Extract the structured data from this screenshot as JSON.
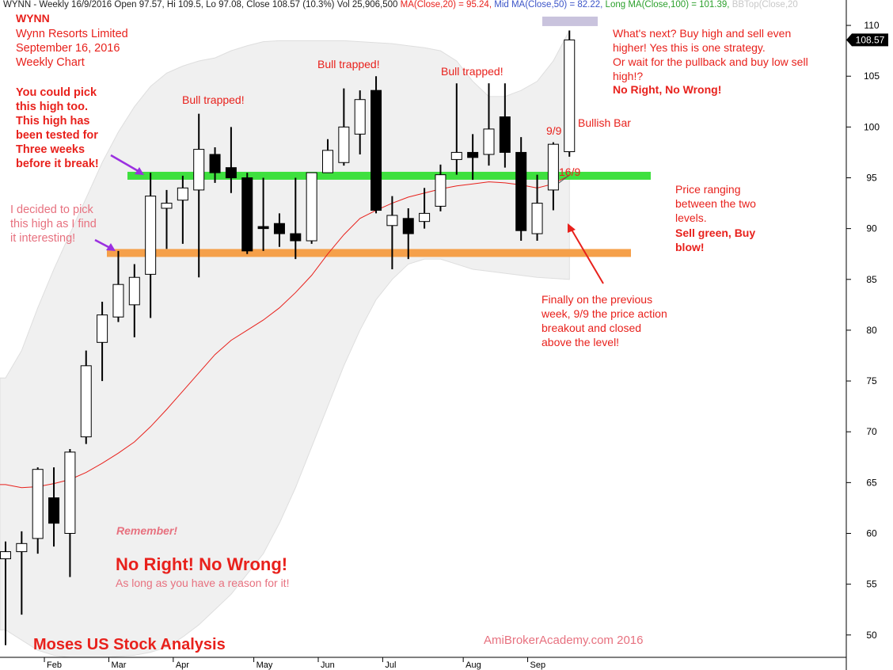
{
  "header": {
    "symbol_line": "WYNN - Weekly 16/9/2016 Open 97.57, Hi 109.5, Lo 97.08, Close 108.57 (10.3%) Vol 25,906,500",
    "ma20": "MA(Close,20) = 95.24,",
    "ma50": "Mid MA(Close,50) = 82.22,",
    "ma100": "Long MA(Close,100) = 101.39,",
    "bbtop": "BBTop(Close,20"
  },
  "title_block": {
    "ticker": "WYNN",
    "company": "Wynn Resorts Limited",
    "date": "September 16, 2016",
    "period": "Weekly Chart"
  },
  "annotations": {
    "pick_high": "You could  pick\nthis high too.\nThis high has\nbeen tested for\nThree weeks\nbefore it break!",
    "decided": "I decided to pick\nthis high as I find\nit interesting!",
    "bull1": "Bull trapped!",
    "bull2": "Bull trapped!",
    "bull3": "Bull trapped!",
    "whats_next": "What's next? Buy high and sell even\nhigher! Yes this is one strategy.\nOr wait for the pullback and buy low sell\nhigh!?",
    "no_right": "No Right, No Wrong!",
    "bullish_bar": "Bullish Bar",
    "label_99": "9/9",
    "label_169": "16/9",
    "ranging": "Price ranging\nbetween the two\nlevels.",
    "sell_green": "Sell green, Buy\nblow!",
    "finally": "Finally on the previous\nweek, 9/9 the price action\nbreakout and closed\nabove the level!",
    "remember": "Remember!",
    "no_right2": "No Right! No Wrong!",
    "as_long": "As long as you have a reason for it!",
    "moses": "Moses US Stock Analysis",
    "amibroker": "AmiBrokerAcademy.com  2016"
  },
  "colors": {
    "green_level": "#3ee03e",
    "orange_level": "#f5a04a",
    "ma_line": "#e8211c",
    "band_fill": "#f0f0f0",
    "highlight": "#c9c3dd"
  },
  "chart_data": {
    "type": "candlestick",
    "ylim": [
      47.8,
      112.5
    ],
    "y_ticks": [
      50,
      55,
      60,
      65,
      70,
      75,
      80,
      85,
      90,
      95,
      100,
      105,
      110
    ],
    "last_price": "108.57",
    "x_months": [
      "Feb",
      "Mar",
      "Apr",
      "May",
      "Jun",
      "Jul",
      "Aug",
      "Sep"
    ],
    "levels": {
      "green": 95.2,
      "orange": 87.6
    },
    "candles": [
      {
        "o": 57.5,
        "h": 59.2,
        "l": 49.0,
        "c": 58.2
      },
      {
        "o": 58.2,
        "h": 60.2,
        "l": 52.0,
        "c": 59.0
      },
      {
        "o": 59.5,
        "h": 66.5,
        "l": 58.0,
        "c": 66.3
      },
      {
        "o": 63.5,
        "h": 66.5,
        "l": 58.7,
        "c": 61.0
      },
      {
        "o": 60.0,
        "h": 68.3,
        "l": 55.7,
        "c": 68.0
      },
      {
        "o": 69.5,
        "h": 78.0,
        "l": 68.8,
        "c": 76.5
      },
      {
        "o": 78.8,
        "h": 82.8,
        "l": 75.0,
        "c": 81.5
      },
      {
        "o": 81.3,
        "h": 87.8,
        "l": 80.8,
        "c": 84.5
      },
      {
        "o": 82.5,
        "h": 86.5,
        "l": 79.3,
        "c": 85.2
      },
      {
        "o": 85.5,
        "h": 95.5,
        "l": 81.2,
        "c": 93.2
      },
      {
        "o": 92.0,
        "h": 93.8,
        "l": 88.0,
        "c": 92.5
      },
      {
        "o": 92.8,
        "h": 95.2,
        "l": 88.5,
        "c": 94.0
      },
      {
        "o": 93.8,
        "h": 101.3,
        "l": 85.2,
        "c": 97.8
      },
      {
        "o": 97.3,
        "h": 98.0,
        "l": 94.5,
        "c": 95.5
      },
      {
        "o": 96.0,
        "h": 100.0,
        "l": 93.5,
        "c": 95.0
      },
      {
        "o": 95.0,
        "h": 95.5,
        "l": 87.5,
        "c": 87.8
      },
      {
        "o": 90.2,
        "h": 95.0,
        "l": 87.8,
        "c": 90.0
      },
      {
        "o": 90.5,
        "h": 91.5,
        "l": 88.2,
        "c": 89.5
      },
      {
        "o": 89.5,
        "h": 95.0,
        "l": 87.0,
        "c": 88.8
      },
      {
        "o": 88.8,
        "h": 95.0,
        "l": 88.5,
        "c": 95.5
      },
      {
        "o": 95.5,
        "h": 98.8,
        "l": 95.5,
        "c": 97.7
      },
      {
        "o": 96.5,
        "h": 103.8,
        "l": 96.2,
        "c": 100.0
      },
      {
        "o": 99.3,
        "h": 103.6,
        "l": 97.3,
        "c": 102.7
      },
      {
        "o": 103.6,
        "h": 105.0,
        "l": 91.5,
        "c": 91.8
      },
      {
        "o": 90.3,
        "h": 93.2,
        "l": 86.0,
        "c": 91.3
      },
      {
        "o": 91.0,
        "h": 92.0,
        "l": 87.0,
        "c": 89.5
      },
      {
        "o": 90.7,
        "h": 94.0,
        "l": 90.0,
        "c": 91.5
      },
      {
        "o": 92.2,
        "h": 96.3,
        "l": 91.7,
        "c": 95.3
      },
      {
        "o": 96.8,
        "h": 104.3,
        "l": 95.3,
        "c": 97.5
      },
      {
        "o": 97.5,
        "h": 99.3,
        "l": 94.8,
        "c": 97.0
      },
      {
        "o": 97.3,
        "h": 104.3,
        "l": 96.2,
        "c": 99.8
      },
      {
        "o": 101.0,
        "h": 104.3,
        "l": 96.0,
        "c": 97.5
      },
      {
        "o": 97.5,
        "h": 99.0,
        "l": 88.8,
        "c": 89.8
      },
      {
        "o": 89.5,
        "h": 95.3,
        "l": 88.8,
        "c": 92.5
      },
      {
        "o": 93.8,
        "h": 98.5,
        "l": 91.8,
        "c": 98.3
      },
      {
        "o": 97.57,
        "h": 109.5,
        "l": 97.08,
        "c": 108.57
      }
    ],
    "ma20": [
      64.8,
      64.5,
      64.6,
      64.9,
      65.3,
      66.0,
      66.9,
      67.9,
      69.0,
      70.5,
      72.2,
      74.0,
      75.8,
      77.6,
      79.0,
      80.0,
      81.0,
      82.2,
      83.7,
      85.4,
      87.5,
      89.4,
      91.0,
      91.8,
      92.5,
      93.1,
      93.5,
      93.9,
      94.2,
      94.4,
      94.6,
      94.5,
      94.3,
      94.0,
      94.4,
      95.24
    ],
    "band_upper": [
      75.3,
      78.0,
      82.2,
      86.0,
      89.5,
      93.0,
      96.5,
      99.5,
      102.0,
      104.0,
      105.3,
      106.0,
      106.5,
      106.8,
      107.5,
      108.0,
      108.4,
      108.5,
      108.5,
      108.5,
      108.5,
      108.5,
      108.4,
      108.3,
      108.2,
      108.0,
      107.8,
      107.5,
      106.5,
      104.5,
      103.0,
      103.0,
      103.6,
      104.5,
      106.5,
      109.5
    ],
    "band_lower": [
      50.5,
      49.5,
      48.5,
      48.0,
      47.8,
      47.8,
      47.8,
      47.9,
      48.0,
      48.3,
      48.8,
      49.8,
      51.0,
      52.5,
      54.0,
      56.0,
      58.0,
      61.0,
      64.5,
      68.5,
      72.5,
      76.5,
      80.0,
      83.0,
      85.0,
      86.5,
      87.0,
      87.0,
      86.5,
      86.0,
      85.8,
      85.6,
      85.4,
      85.2,
      85.1,
      85.0
    ]
  }
}
